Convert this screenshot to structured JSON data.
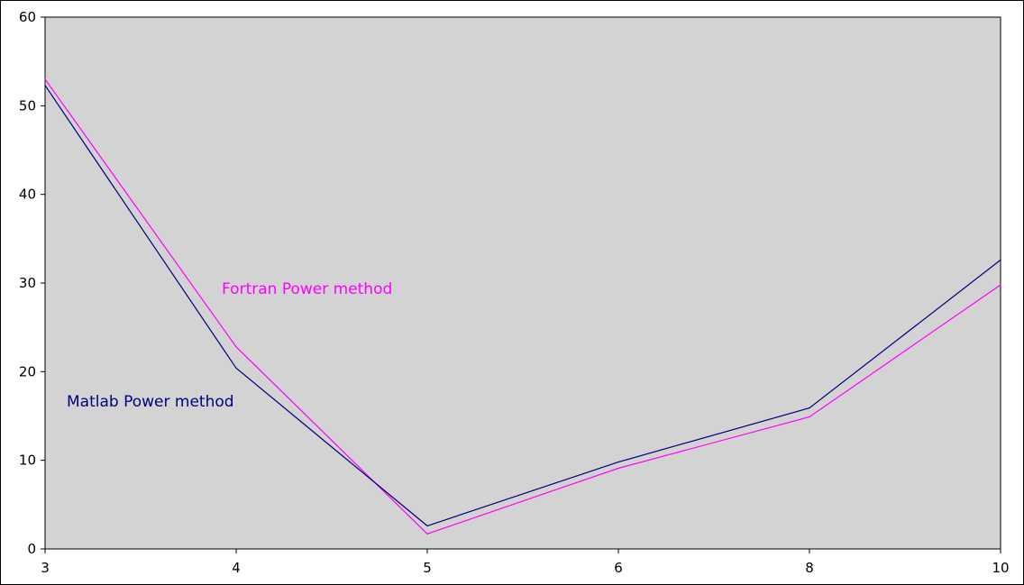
{
  "chart_data": {
    "type": "line",
    "x": [
      "3",
      "4",
      "5",
      "6",
      "8",
      "10"
    ],
    "ylim": [
      0,
      60
    ],
    "y_ticks": [
      0,
      10,
      20,
      30,
      40,
      50,
      60
    ],
    "grid": false,
    "title": "",
    "xlabel": "",
    "ylabel": "",
    "plot_background": "#d3d3d3",
    "series": [
      {
        "name": "Fortran Power method",
        "color": "#ff00ff",
        "values": [
          53,
          22.8,
          1.7,
          9.1,
          14.9,
          29.8
        ]
      },
      {
        "name": "Matlab Power method",
        "color": "#000080",
        "values": [
          52.3,
          20.4,
          2.6,
          9.8,
          15.9,
          32.6
        ]
      }
    ]
  }
}
